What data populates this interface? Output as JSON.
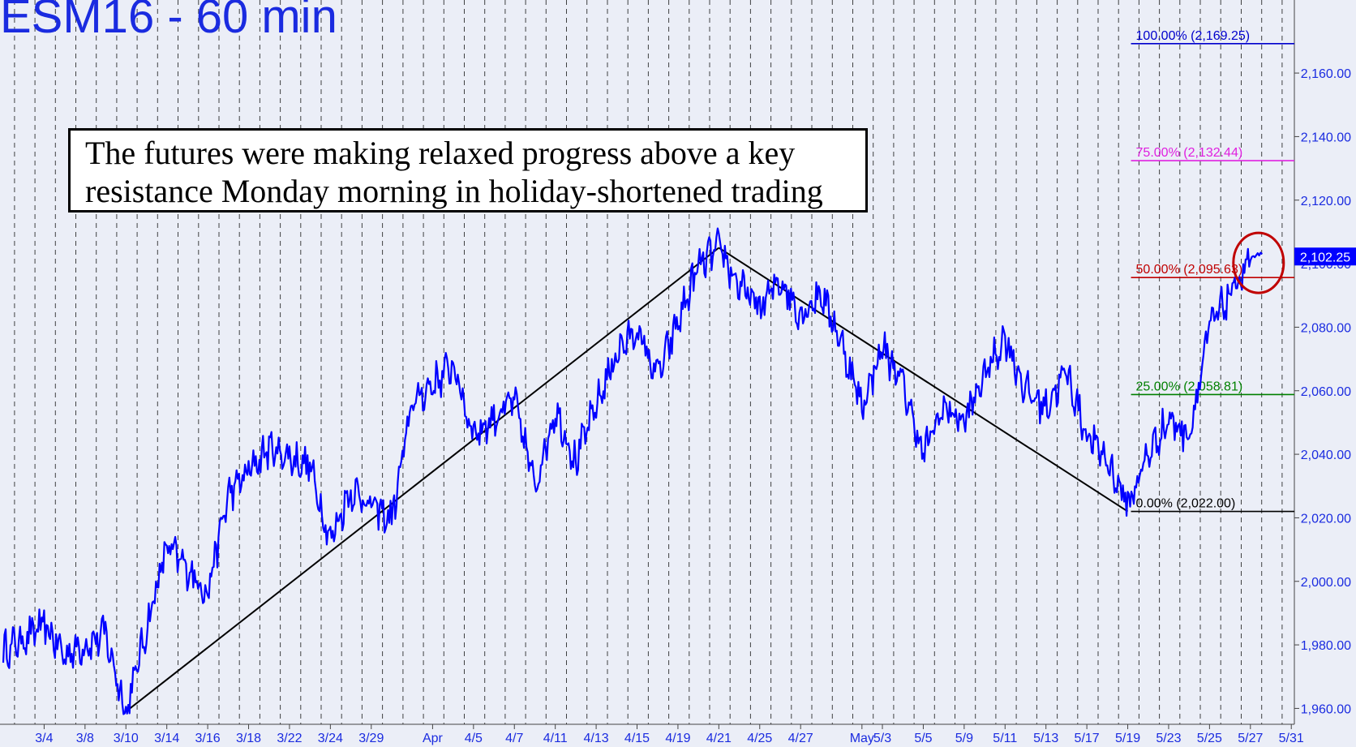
{
  "chart_data": {
    "type": "line",
    "title": "ESM16 - 60 min",
    "annotation": [
      "The futures were making relaxed progress above a key",
      "resistance Monday morning in holiday-shortened trading"
    ],
    "x_tick_labels": [
      "3/4",
      "3/8",
      "3/10",
      "3/14",
      "3/16",
      "3/18",
      "3/22",
      "3/24",
      "3/29",
      "Apr",
      "4/5",
      "4/7",
      "4/11",
      "4/13",
      "4/15",
      "4/19",
      "4/21",
      "4/25",
      "4/27",
      "May",
      "5/3",
      "5/5",
      "5/9",
      "5/11",
      "5/13",
      "5/17",
      "5/19",
      "5/23",
      "5/25",
      "5/27",
      "5/31"
    ],
    "y_tick_labels": [
      "1,960.00",
      "1,980.00",
      "2,000.00",
      "2,020.00",
      "2,040.00",
      "2,060.00",
      "2,080.00",
      "2,100.00",
      "2,120.00",
      "2,140.00",
      "2,160.00"
    ],
    "y_ticks": [
      1960,
      1980,
      2000,
      2020,
      2040,
      2060,
      2080,
      2100,
      2120,
      2140,
      2160
    ],
    "ylim": [
      1955,
      2183
    ],
    "grid": "vertical dashed",
    "last_price": {
      "label": "2,102.25",
      "value": 2102.25
    },
    "series": [
      {
        "x": [
          "3/2",
          "3/4",
          "3/7",
          "3/9",
          "3/10",
          "3/14",
          "3/16",
          "3/17",
          "3/21",
          "3/23",
          "3/24",
          "3/28",
          "3/30",
          "3/31",
          "4/4",
          "4/5",
          "4/7",
          "4/8",
          "4/11",
          "4/12",
          "4/14",
          "4/15",
          "4/18",
          "4/20",
          "4/21",
          "4/22",
          "4/25",
          "4/26",
          "4/27",
          "4/28",
          "4/29",
          "5/2",
          "5/3",
          "5/4",
          "5/5",
          "5/6",
          "5/9",
          "5/10",
          "5/11",
          "5/12",
          "5/13",
          "5/16",
          "5/17",
          "5/18",
          "5/19",
          "5/20",
          "5/23",
          "5/24",
          "5/25",
          "5/26",
          "5/27"
        ],
        "values": [
          1978,
          1986,
          1977,
          1983,
          1959,
          2011,
          1997,
          2027,
          2042,
          2036,
          2013,
          2029,
          2019,
          2056,
          2068,
          2046,
          2057,
          2030,
          2054,
          2038,
          2072,
          2079,
          2064,
          2099,
          2105,
          2093,
          2086,
          2095,
          2084,
          2091,
          2075,
          2055,
          2074,
          2062,
          2040,
          2055,
          2050,
          2065,
          2077,
          2060,
          2055,
          2066,
          2046,
          2038,
          2024,
          2040,
          2051,
          2046,
          2080,
          2090,
          2102
        ]
      }
    ],
    "trendlines": [
      {
        "x": [
          "3/10",
          "4/21"
        ],
        "values": [
          1959,
          2105
        ]
      },
      {
        "x": [
          "4/21",
          "5/19"
        ],
        "values": [
          2105,
          2022
        ]
      }
    ],
    "fibonacci_levels": [
      {
        "label": "100.00% (2,169.25)",
        "value": 2169.25,
        "color": "#0000cc"
      },
      {
        "label": "75.00% (2,132.44)",
        "value": 2132.44,
        "color": "#e020e0"
      },
      {
        "label": "50.00% (2,095.63)",
        "value": 2095.63,
        "color": "#c00000"
      },
      {
        "label": "25.00% (2,058.81)",
        "value": 2058.81,
        "color": "#008000"
      },
      {
        "label": "0.00% (2,022.00)",
        "value": 2022.0,
        "color": "#000000"
      }
    ],
    "highlight_circle": {
      "x": "5/27",
      "value": 2100,
      "color": "#c00000"
    },
    "colors": {
      "background": "#ebeef7",
      "price_line": "#0000ff",
      "axis_text": "#1a2be0",
      "grid": "#222222",
      "trendline": "#000000"
    }
  }
}
